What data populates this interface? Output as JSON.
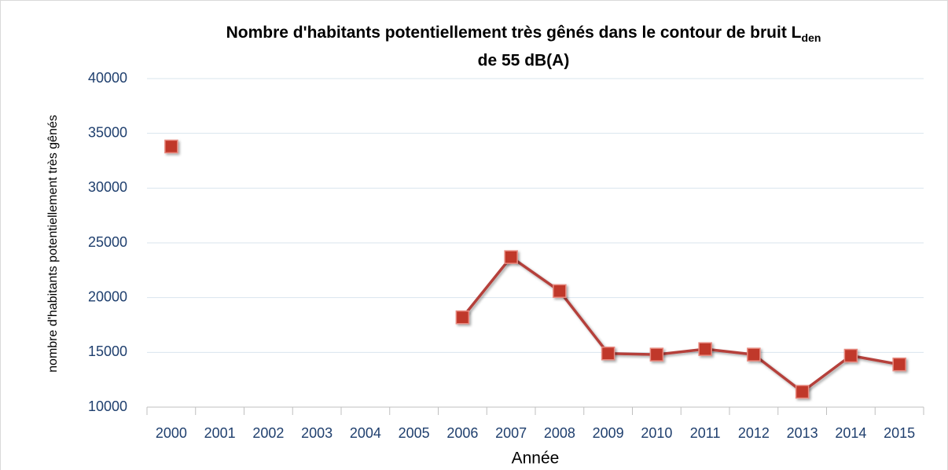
{
  "chart_data": {
    "type": "line",
    "title": {
      "text": "Nombre d'habitants potentiellement très gênés dans le contour de bruit L",
      "subscript": "den",
      "line2": "de 55 dB(A)"
    },
    "x_label": "Année",
    "y_label": "nombre d'habitants potentiellement très gênés",
    "categories": [
      "2000",
      "2001",
      "2002",
      "2003",
      "2004",
      "2005",
      "2006",
      "2007",
      "2008",
      "2009",
      "2010",
      "2011",
      "2012",
      "2013",
      "2014",
      "2015"
    ],
    "series": [
      {
        "name": "nombre d'habitants potentiellement très gênés",
        "color": "#c0392b",
        "values": [
          33800,
          null,
          null,
          null,
          null,
          null,
          18200,
          23700,
          20600,
          14900,
          14800,
          15300,
          14800,
          11400,
          14700,
          13900
        ]
      }
    ],
    "ylim": [
      10000,
      40000
    ],
    "yticks": [
      10000,
      15000,
      20000,
      25000,
      30000,
      35000,
      40000
    ],
    "grid": true
  }
}
